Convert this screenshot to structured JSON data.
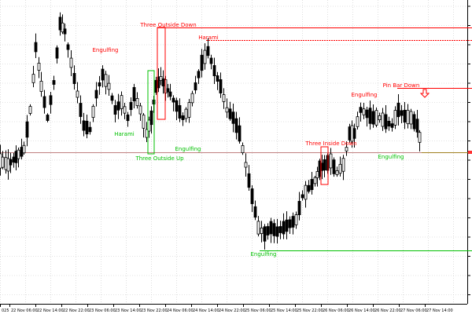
{
  "chart_data": {
    "type": "candlestick",
    "x_tick_labels": [
      "025",
      "22 Nov 06:00",
      "22 Nov 14:00",
      "22 Nov 22:00",
      "23 Nov 06:00",
      "23 Nov 14:00",
      "23 Nov 22:00",
      "24 Nov 06:00",
      "24 Nov 14:00",
      "24 Nov 22:00",
      "25 Nov 06:00",
      "25 Nov 14:00",
      "25 Nov 22:00",
      "26 Nov 06:00",
      "26 Nov 14:00",
      "26 Nov 22:00",
      "27 Nov 06:00",
      "27 Nov 14:00"
    ],
    "patterns": [
      {
        "label": "Engulfing",
        "color": "#ff0000"
      },
      {
        "label": "Three Outside Down",
        "color": "#ff0000"
      },
      {
        "label": "Harami",
        "color": "#ff0000"
      },
      {
        "label": "Harami",
        "color": "#00c000"
      },
      {
        "label": "Three Outside Up",
        "color": "#00c000"
      },
      {
        "label": "Engulfing",
        "color": "#00c000"
      },
      {
        "label": "Engulfing",
        "color": "#00c000"
      },
      {
        "label": "Three Inside Down",
        "color": "#ff0000"
      },
      {
        "label": "Engulfing",
        "color": "#ff0000"
      },
      {
        "label": "Pin Bar Down",
        "color": "#ff0000"
      },
      {
        "label": "Engulfing",
        "color": "#00c000"
      }
    ],
    "colors": {
      "background": "#ffffff",
      "bull_body": "#ffffff",
      "bear_body": "#000000",
      "grid": "#c8c8c8",
      "price_line": "#c08080",
      "level_red": "#ff0000",
      "level_green": "#00c000"
    }
  }
}
